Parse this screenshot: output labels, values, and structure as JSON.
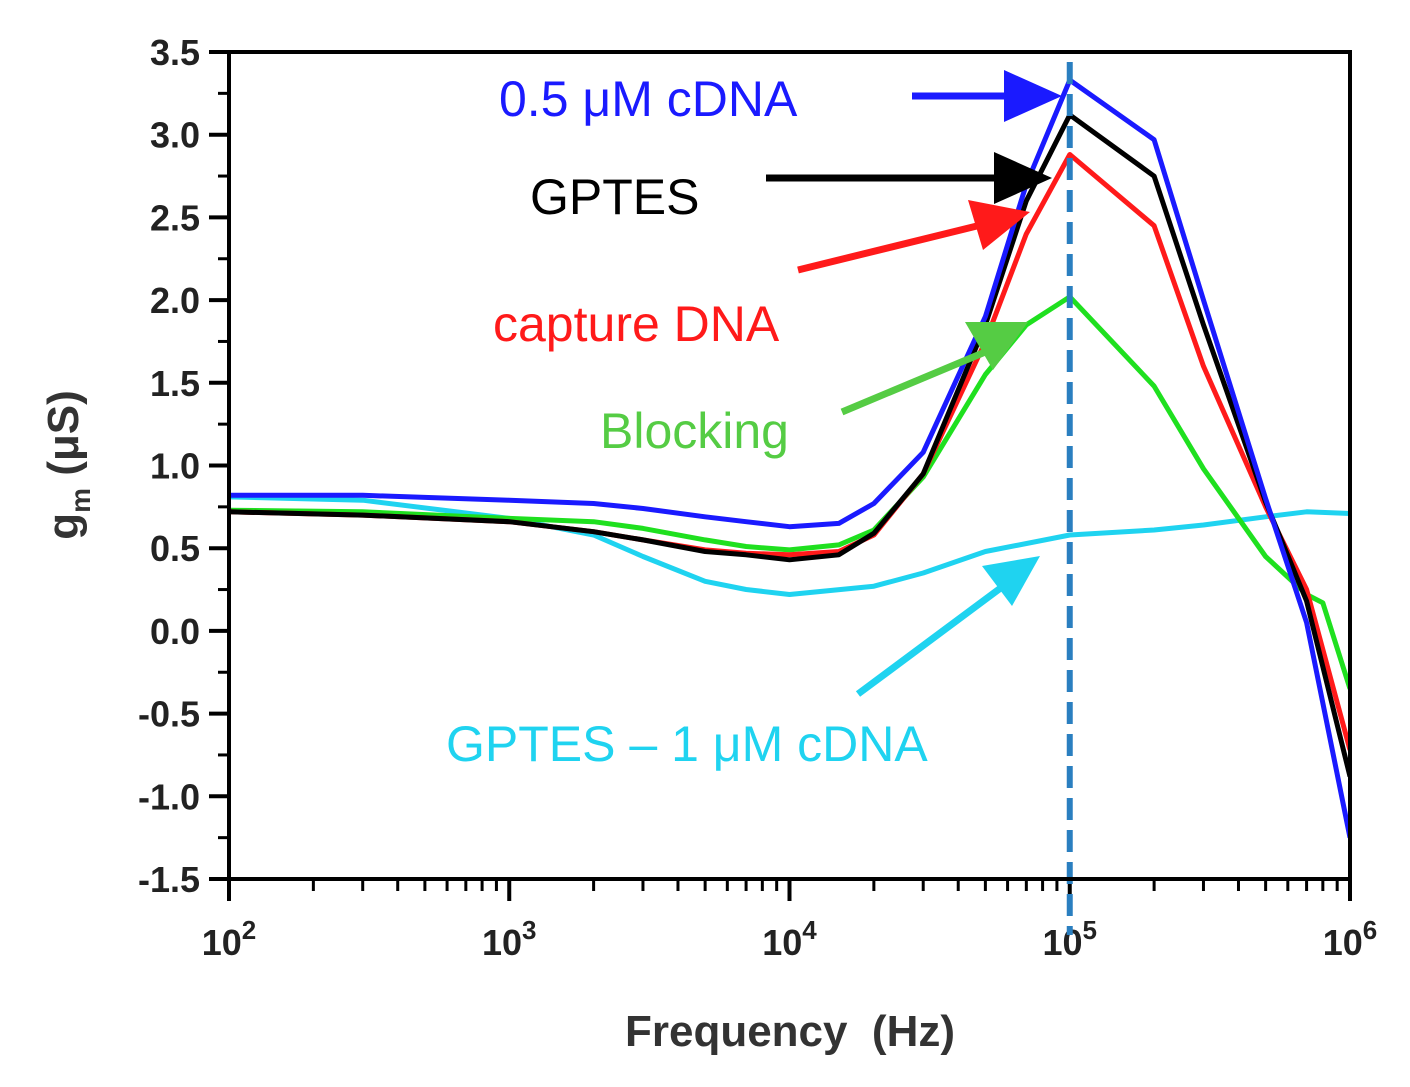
{
  "chart_data": {
    "type": "line",
    "title": "",
    "xlabel": "Frequency  (Hz)",
    "ylabel": "g_m (μS)",
    "ylabel_main": "g",
    "ylabel_sub": "m",
    "ylabel_unit": " (μS)",
    "xscale": "log",
    "xlim": [
      100,
      1000000
    ],
    "ylim": [
      -1.5,
      3.5
    ],
    "x_ticks": [
      {
        "base": "10",
        "exp": "2",
        "value": 100
      },
      {
        "base": "10",
        "exp": "3",
        "value": 1000
      },
      {
        "base": "10",
        "exp": "4",
        "value": 10000
      },
      {
        "base": "10",
        "exp": "5",
        "value": 100000
      },
      {
        "base": "10",
        "exp": "6",
        "value": 1000000
      }
    ],
    "y_ticks": [
      "-1.5",
      "-1.0",
      "-0.5",
      "0.0",
      "0.5",
      "1.0",
      "1.5",
      "2.0",
      "2.5",
      "3.0",
      "3.5"
    ],
    "reference_line": {
      "x": 100000,
      "style": "dashed",
      "color": "#2a7fc0"
    },
    "series": [
      {
        "name": "GPTES – 1 μM cDNA",
        "color": "#1fd3f0",
        "x": [
          100,
          300,
          1000,
          2000,
          3000,
          5000,
          7000,
          10000,
          20000,
          30000,
          50000,
          100000,
          200000,
          300000,
          500000,
          700000,
          1000000
        ],
        "y": [
          0.81,
          0.79,
          0.68,
          0.58,
          0.45,
          0.3,
          0.25,
          0.22,
          0.27,
          0.35,
          0.48,
          0.58,
          0.61,
          0.64,
          0.69,
          0.72,
          0.71
        ]
      },
      {
        "name": "Blocking",
        "color": "#1fe01f",
        "x": [
          100,
          300,
          1000,
          2000,
          3000,
          5000,
          7000,
          10000,
          15000,
          20000,
          30000,
          50000,
          70000,
          100000,
          200000,
          300000,
          500000,
          700000,
          800000,
          1000000
        ],
        "y": [
          0.73,
          0.72,
          0.68,
          0.66,
          0.62,
          0.55,
          0.51,
          0.49,
          0.52,
          0.61,
          0.93,
          1.55,
          1.85,
          2.02,
          1.48,
          0.98,
          0.45,
          0.22,
          0.17,
          -0.35
        ]
      },
      {
        "name": "capture DNA",
        "color": "#ff1a1a",
        "x": [
          100,
          300,
          1000,
          2000,
          3000,
          5000,
          7000,
          10000,
          15000,
          20000,
          30000,
          50000,
          70000,
          100000,
          200000,
          300000,
          500000,
          700000,
          1000000
        ],
        "y": [
          0.72,
          0.7,
          0.66,
          0.6,
          0.55,
          0.49,
          0.47,
          0.46,
          0.48,
          0.58,
          0.95,
          1.75,
          2.4,
          2.88,
          2.45,
          1.6,
          0.75,
          0.25,
          -0.72
        ]
      },
      {
        "name": "GPTES",
        "color": "#000000",
        "x": [
          100,
          300,
          1000,
          2000,
          3000,
          5000,
          7000,
          10000,
          15000,
          20000,
          30000,
          50000,
          70000,
          100000,
          200000,
          300000,
          500000,
          700000,
          1000000
        ],
        "y": [
          0.72,
          0.7,
          0.66,
          0.6,
          0.55,
          0.48,
          0.46,
          0.43,
          0.46,
          0.59,
          0.95,
          1.85,
          2.6,
          3.12,
          2.75,
          1.85,
          0.78,
          0.18,
          -0.88
        ]
      },
      {
        "name": "0.5 μM cDNA",
        "color": "#1a1aff",
        "x": [
          100,
          300,
          1000,
          2000,
          3000,
          5000,
          7000,
          10000,
          15000,
          20000,
          30000,
          50000,
          70000,
          100000,
          200000,
          300000,
          500000,
          700000,
          1000000
        ],
        "y": [
          0.82,
          0.82,
          0.79,
          0.77,
          0.74,
          0.69,
          0.66,
          0.63,
          0.65,
          0.77,
          1.08,
          1.9,
          2.7,
          3.33,
          2.97,
          2.0,
          0.8,
          0.05,
          -1.25
        ]
      }
    ],
    "annotations": [
      {
        "text": "0.5 μM cDNA",
        "color": "#1a1aff"
      },
      {
        "text": "GPTES",
        "color": "#000000"
      },
      {
        "text": "capture DNA",
        "color": "#ff1a1a"
      },
      {
        "text": "Blocking",
        "color": "#55cc44"
      },
      {
        "text": "GPTES – 1 μM cDNA",
        "color": "#1fd3f0"
      }
    ]
  }
}
